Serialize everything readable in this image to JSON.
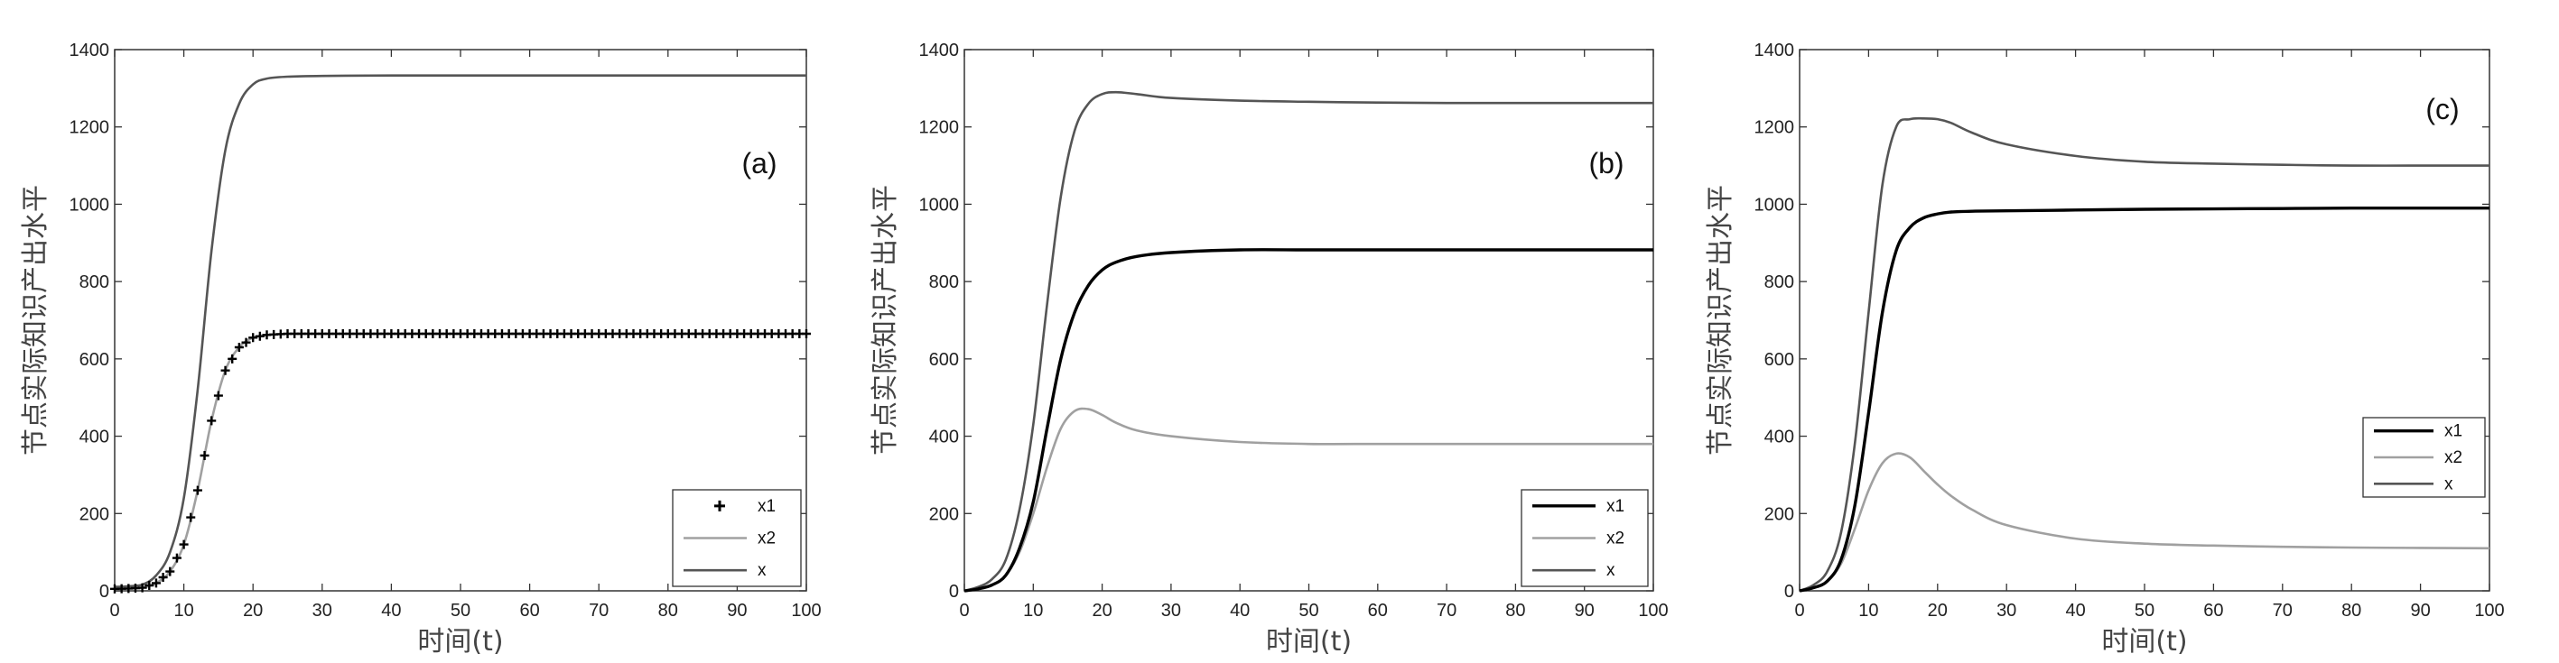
{
  "chart_data": [
    {
      "type": "line",
      "panel_label": "(a)",
      "xlabel": "时间(t)",
      "ylabel": "节点实际知识产出水平",
      "xlim": [
        0,
        100
      ],
      "ylim": [
        0,
        1400
      ],
      "xticks": [
        0,
        10,
        20,
        30,
        40,
        50,
        60,
        70,
        80,
        90,
        100
      ],
      "yticks": [
        0,
        200,
        400,
        600,
        800,
        1000,
        1200,
        1400
      ],
      "legend_position": "bottom-right",
      "series": [
        {
          "name": "x1",
          "style": "markers-plus",
          "color": "#000000",
          "x": [
            0,
            2,
            4,
            6,
            8,
            10,
            12,
            14,
            16,
            18,
            20,
            22,
            25,
            30,
            40,
            50,
            60,
            70,
            80,
            90,
            100
          ],
          "y": [
            5,
            6,
            8,
            20,
            50,
            120,
            260,
            440,
            570,
            630,
            655,
            662,
            665,
            665,
            665,
            665,
            665,
            665,
            665,
            665,
            665
          ]
        },
        {
          "name": "x2",
          "style": "line",
          "color": "#a0a0a0",
          "x": [
            0,
            2,
            4,
            6,
            8,
            10,
            12,
            14,
            16,
            18,
            20,
            22,
            25,
            30,
            40,
            50,
            60,
            70,
            80,
            90,
            100
          ],
          "y": [
            5,
            6,
            8,
            20,
            50,
            120,
            260,
            440,
            570,
            630,
            655,
            662,
            665,
            665,
            665,
            665,
            665,
            665,
            665,
            665,
            665
          ]
        },
        {
          "name": "x",
          "style": "line",
          "color": "#555555",
          "x": [
            0,
            2,
            4,
            6,
            8,
            10,
            12,
            14,
            16,
            18,
            20,
            22,
            25,
            30,
            40,
            50,
            60,
            70,
            80,
            90,
            100
          ],
          "y": [
            10,
            12,
            16,
            40,
            100,
            240,
            520,
            880,
            1140,
            1260,
            1310,
            1325,
            1330,
            1332,
            1333,
            1333,
            1333,
            1333,
            1333,
            1333,
            1333
          ]
        }
      ]
    },
    {
      "type": "line",
      "panel_label": "(b)",
      "xlabel": "时间(t)",
      "ylabel": "节点实际知识产出水平",
      "xlim": [
        0,
        100
      ],
      "ylim": [
        0,
        1400
      ],
      "xticks": [
        0,
        10,
        20,
        30,
        40,
        50,
        60,
        70,
        80,
        90,
        100
      ],
      "yticks": [
        0,
        200,
        400,
        600,
        800,
        1000,
        1200,
        1400
      ],
      "legend_position": "bottom-right",
      "series": [
        {
          "name": "x1",
          "style": "line",
          "color": "#000000",
          "x": [
            0,
            2,
            4,
            6,
            8,
            10,
            12,
            14,
            16,
            18,
            20,
            22,
            25,
            30,
            40,
            50,
            60,
            70,
            80,
            90,
            100
          ],
          "y": [
            0,
            5,
            15,
            40,
            110,
            230,
            420,
            600,
            720,
            790,
            830,
            850,
            865,
            875,
            882,
            882,
            882,
            882,
            882,
            882,
            882
          ]
        },
        {
          "name": "x2",
          "style": "line",
          "color": "#a0a0a0",
          "x": [
            0,
            2,
            4,
            6,
            8,
            10,
            12,
            14,
            16,
            18,
            20,
            22,
            25,
            30,
            40,
            50,
            60,
            70,
            80,
            90,
            100
          ],
          "y": [
            0,
            5,
            15,
            40,
            100,
            200,
            320,
            420,
            465,
            470,
            455,
            435,
            415,
            400,
            385,
            380,
            380,
            380,
            380,
            380,
            380
          ]
        },
        {
          "name": "x",
          "style": "line",
          "color": "#555555",
          "x": [
            0,
            2,
            4,
            6,
            8,
            10,
            12,
            14,
            16,
            18,
            20,
            22,
            25,
            30,
            40,
            50,
            60,
            70,
            80,
            90,
            100
          ],
          "y": [
            0,
            10,
            30,
            80,
            210,
            430,
            740,
            1020,
            1190,
            1260,
            1285,
            1290,
            1285,
            1275,
            1268,
            1265,
            1263,
            1262,
            1262,
            1262,
            1262
          ]
        }
      ]
    },
    {
      "type": "line",
      "panel_label": "(c)",
      "xlabel": "时间(t)",
      "ylabel": "节点实际知识产出水平",
      "xlim": [
        0,
        100
      ],
      "ylim": [
        0,
        1400
      ],
      "xticks": [
        0,
        10,
        20,
        30,
        40,
        50,
        60,
        70,
        80,
        90,
        100
      ],
      "yticks": [
        0,
        200,
        400,
        600,
        800,
        1000,
        1200,
        1400
      ],
      "legend_position": "middle-right",
      "series": [
        {
          "name": "x1",
          "style": "line",
          "color": "#000000",
          "x": [
            0,
            2,
            4,
            6,
            8,
            10,
            12,
            14,
            16,
            18,
            20,
            22,
            25,
            30,
            40,
            50,
            60,
            70,
            80,
            90,
            100
          ],
          "y": [
            0,
            8,
            25,
            80,
            220,
            460,
            720,
            880,
            940,
            965,
            975,
            980,
            982,
            983,
            985,
            987,
            988,
            989,
            990,
            990,
            990
          ]
        },
        {
          "name": "x2",
          "style": "line",
          "color": "#a0a0a0",
          "x": [
            0,
            2,
            4,
            6,
            8,
            10,
            12,
            14,
            16,
            18,
            20,
            22,
            25,
            30,
            40,
            50,
            60,
            70,
            80,
            90,
            100
          ],
          "y": [
            0,
            8,
            25,
            70,
            160,
            260,
            330,
            355,
            345,
            310,
            275,
            245,
            210,
            170,
            135,
            122,
            117,
            114,
            112,
            111,
            110
          ]
        },
        {
          "name": "x",
          "style": "line",
          "color": "#555555",
          "x": [
            0,
            2,
            4,
            6,
            8,
            10,
            12,
            14,
            16,
            18,
            20,
            22,
            25,
            30,
            40,
            50,
            60,
            70,
            80,
            90,
            100
          ],
          "y": [
            0,
            15,
            50,
            150,
            380,
            720,
            1050,
            1200,
            1220,
            1222,
            1220,
            1210,
            1185,
            1155,
            1125,
            1110,
            1105,
            1102,
            1100,
            1100,
            1100
          ]
        }
      ]
    }
  ]
}
